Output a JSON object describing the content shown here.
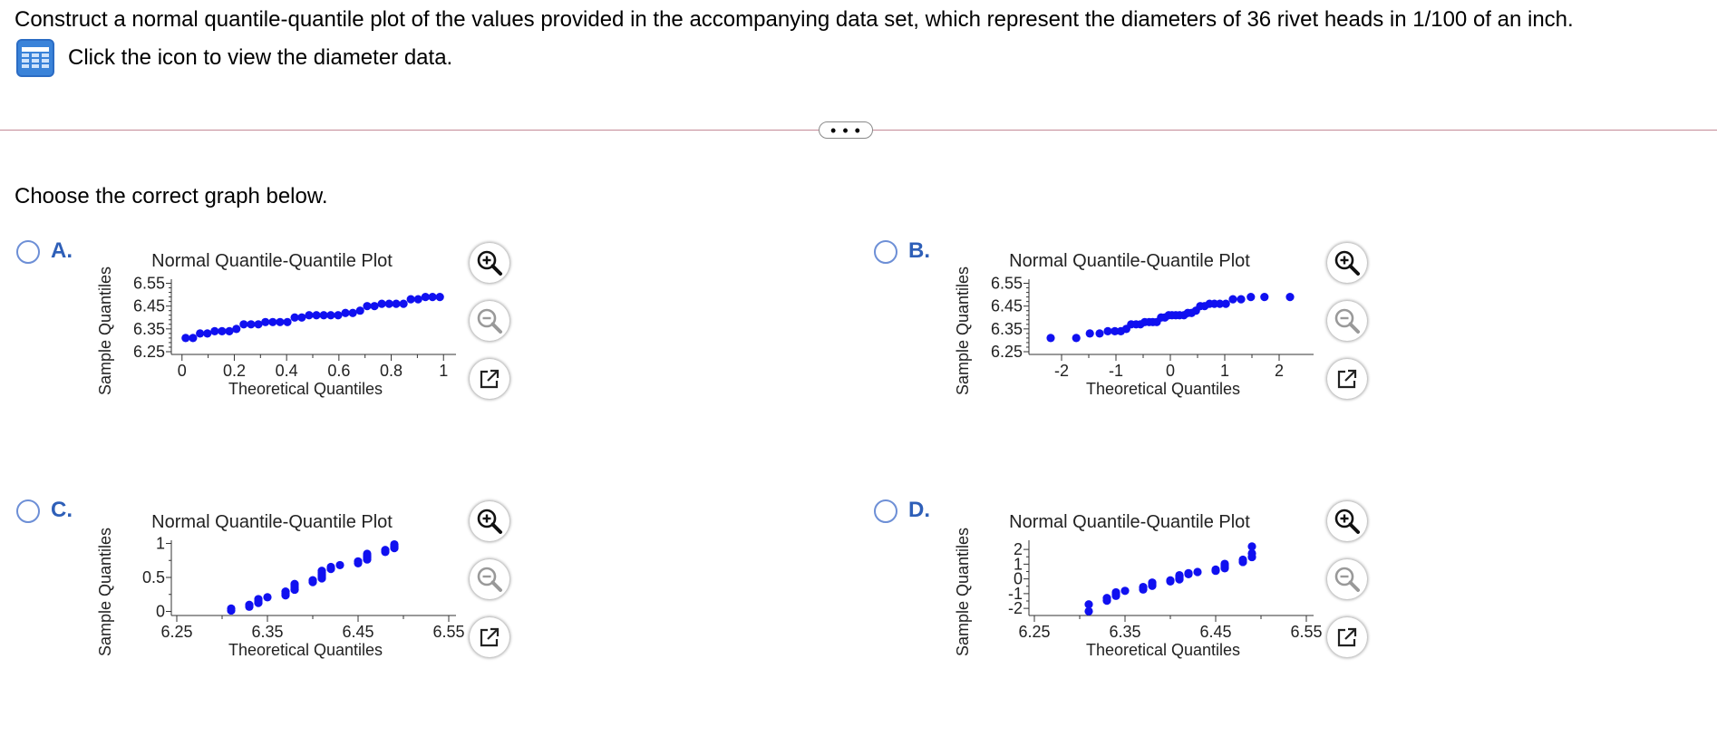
{
  "question": {
    "text": "Construct a normal quantile-quantile plot of the values provided in the accompanying data set, which represent the diameters of 36 rivet heads in 1/100 of an inch.",
    "data_link_text": "Click the icon to view the diameter data.",
    "data_icon": "table-grid-icon"
  },
  "divider": {
    "more_label": "• • •"
  },
  "prompt": "Choose the correct graph below.",
  "colors": {
    "points": "#1010f0",
    "radio": "#6d8fd6",
    "letter": "#2e5fb8",
    "divider": "#c48a97"
  },
  "tools": {
    "icons": [
      "zoom-in-icon",
      "zoom-out-icon",
      "open-external-icon"
    ]
  },
  "options": [
    {
      "id": "A",
      "letter": "A."
    },
    {
      "id": "B",
      "letter": "B."
    },
    {
      "id": "C",
      "letter": "C."
    },
    {
      "id": "D",
      "letter": "D."
    }
  ],
  "chart_data": [
    {
      "type": "scatter",
      "option": "A",
      "title": "Normal Quantile-Quantile Plot",
      "xlabel": "Theoretical Quantiles",
      "ylabel": "Sample Quantiles",
      "xlim": [
        -0.02,
        1.02
      ],
      "ylim": [
        6.25,
        6.56
      ],
      "xticks": [
        0,
        0.2,
        0.4,
        0.6,
        0.8,
        1
      ],
      "xtick_labels": [
        "0",
        "0.2",
        "0.4",
        "0.6",
        "0.8",
        "1"
      ],
      "yticks": [
        6.25,
        6.35,
        6.45,
        6.55
      ],
      "ytick_labels": [
        "6.25",
        "6.35",
        "6.45",
        "6.55"
      ],
      "x": [
        0.014,
        0.042,
        0.069,
        0.097,
        0.125,
        0.153,
        0.181,
        0.208,
        0.236,
        0.264,
        0.292,
        0.319,
        0.347,
        0.375,
        0.403,
        0.431,
        0.458,
        0.486,
        0.514,
        0.542,
        0.569,
        0.597,
        0.625,
        0.653,
        0.681,
        0.708,
        0.736,
        0.764,
        0.792,
        0.819,
        0.847,
        0.875,
        0.903,
        0.931,
        0.958,
        0.986
      ],
      "y": [
        6.31,
        6.31,
        6.33,
        6.33,
        6.34,
        6.34,
        6.34,
        6.35,
        6.37,
        6.37,
        6.37,
        6.38,
        6.38,
        6.38,
        6.38,
        6.4,
        6.4,
        6.41,
        6.41,
        6.41,
        6.41,
        6.41,
        6.42,
        6.42,
        6.43,
        6.45,
        6.45,
        6.46,
        6.46,
        6.46,
        6.46,
        6.48,
        6.48,
        6.49,
        6.49,
        6.49
      ]
    },
    {
      "type": "scatter",
      "option": "B",
      "title": "Normal Quantile-Quantile Plot",
      "xlabel": "Theoretical Quantiles",
      "ylabel": "Sample Quantiles",
      "xlim": [
        -2.5,
        2.5
      ],
      "ylim": [
        6.25,
        6.56
      ],
      "xticks": [
        -2,
        -1,
        0,
        1,
        2
      ],
      "xtick_labels": [
        "-2",
        "-1",
        "0",
        "1",
        "2"
      ],
      "yticks": [
        6.25,
        6.35,
        6.45,
        6.55
      ],
      "ytick_labels": [
        "6.25",
        "6.35",
        "6.45",
        "6.55"
      ],
      "x": [
        -2.2,
        -1.73,
        -1.48,
        -1.3,
        -1.15,
        -1.02,
        -0.91,
        -0.81,
        -0.72,
        -0.63,
        -0.55,
        -0.47,
        -0.39,
        -0.32,
        -0.25,
        -0.17,
        -0.1,
        -0.03,
        0.03,
        0.1,
        0.17,
        0.25,
        0.32,
        0.39,
        0.47,
        0.55,
        0.63,
        0.72,
        0.81,
        0.91,
        1.02,
        1.15,
        1.3,
        1.48,
        1.73,
        2.2
      ],
      "y": [
        6.31,
        6.31,
        6.33,
        6.33,
        6.34,
        6.34,
        6.34,
        6.35,
        6.37,
        6.37,
        6.37,
        6.38,
        6.38,
        6.38,
        6.38,
        6.4,
        6.4,
        6.41,
        6.41,
        6.41,
        6.41,
        6.41,
        6.42,
        6.42,
        6.43,
        6.45,
        6.45,
        6.46,
        6.46,
        6.46,
        6.46,
        6.48,
        6.48,
        6.49,
        6.49,
        6.49
      ]
    },
    {
      "type": "scatter",
      "option": "C",
      "title": "Normal Quantile-Quantile Plot",
      "xlabel": "Theoretical Quantiles",
      "ylabel": "Sample Quantiles",
      "xlim": [
        6.25,
        6.55
      ],
      "ylim": [
        -0.02,
        1.02
      ],
      "xticks": [
        6.25,
        6.35,
        6.45,
        6.55
      ],
      "xtick_labels": [
        "6.25",
        "6.35",
        "6.45",
        "6.55"
      ],
      "yticks": [
        0,
        0.5,
        1
      ],
      "ytick_labels": [
        "0",
        "0.5",
        "1"
      ],
      "x": [
        6.31,
        6.31,
        6.33,
        6.33,
        6.34,
        6.34,
        6.34,
        6.35,
        6.37,
        6.37,
        6.37,
        6.38,
        6.38,
        6.38,
        6.38,
        6.4,
        6.4,
        6.41,
        6.41,
        6.41,
        6.41,
        6.41,
        6.42,
        6.42,
        6.43,
        6.45,
        6.45,
        6.46,
        6.46,
        6.46,
        6.46,
        6.48,
        6.48,
        6.49,
        6.49,
        6.49
      ],
      "y": [
        0.014,
        0.042,
        0.069,
        0.097,
        0.125,
        0.153,
        0.181,
        0.208,
        0.236,
        0.264,
        0.292,
        0.319,
        0.347,
        0.375,
        0.403,
        0.431,
        0.458,
        0.486,
        0.514,
        0.542,
        0.569,
        0.597,
        0.625,
        0.653,
        0.681,
        0.708,
        0.736,
        0.764,
        0.792,
        0.819,
        0.847,
        0.875,
        0.903,
        0.931,
        0.958,
        0.986
      ]
    },
    {
      "type": "scatter",
      "option": "D",
      "title": "Normal Quantile-Quantile Plot",
      "xlabel": "Theoretical Quantiles",
      "ylabel": "Sample Quantiles",
      "xlim": [
        6.25,
        6.55
      ],
      "ylim": [
        -2.3,
        2.5
      ],
      "xticks": [
        6.25,
        6.35,
        6.45,
        6.55
      ],
      "xtick_labels": [
        "6.25",
        "6.35",
        "6.45",
        "6.55"
      ],
      "yticks": [
        -2,
        -1,
        0,
        1,
        2
      ],
      "ytick_labels": [
        "-2",
        "-1",
        "0",
        "1",
        "2"
      ],
      "x": [
        6.31,
        6.31,
        6.33,
        6.33,
        6.34,
        6.34,
        6.34,
        6.35,
        6.37,
        6.37,
        6.37,
        6.38,
        6.38,
        6.38,
        6.38,
        6.4,
        6.4,
        6.41,
        6.41,
        6.41,
        6.41,
        6.41,
        6.42,
        6.42,
        6.43,
        6.45,
        6.45,
        6.46,
        6.46,
        6.46,
        6.46,
        6.48,
        6.48,
        6.49,
        6.49,
        6.49
      ],
      "y": [
        -2.2,
        -1.73,
        -1.48,
        -1.3,
        -1.15,
        -1.02,
        -0.91,
        -0.81,
        -0.72,
        -0.63,
        -0.55,
        -0.47,
        -0.39,
        -0.32,
        -0.25,
        -0.17,
        -0.1,
        -0.03,
        0.03,
        0.1,
        0.17,
        0.25,
        0.32,
        0.39,
        0.47,
        0.55,
        0.63,
        0.72,
        0.81,
        0.91,
        1.02,
        1.15,
        1.3,
        1.48,
        1.73,
        2.2
      ]
    }
  ]
}
